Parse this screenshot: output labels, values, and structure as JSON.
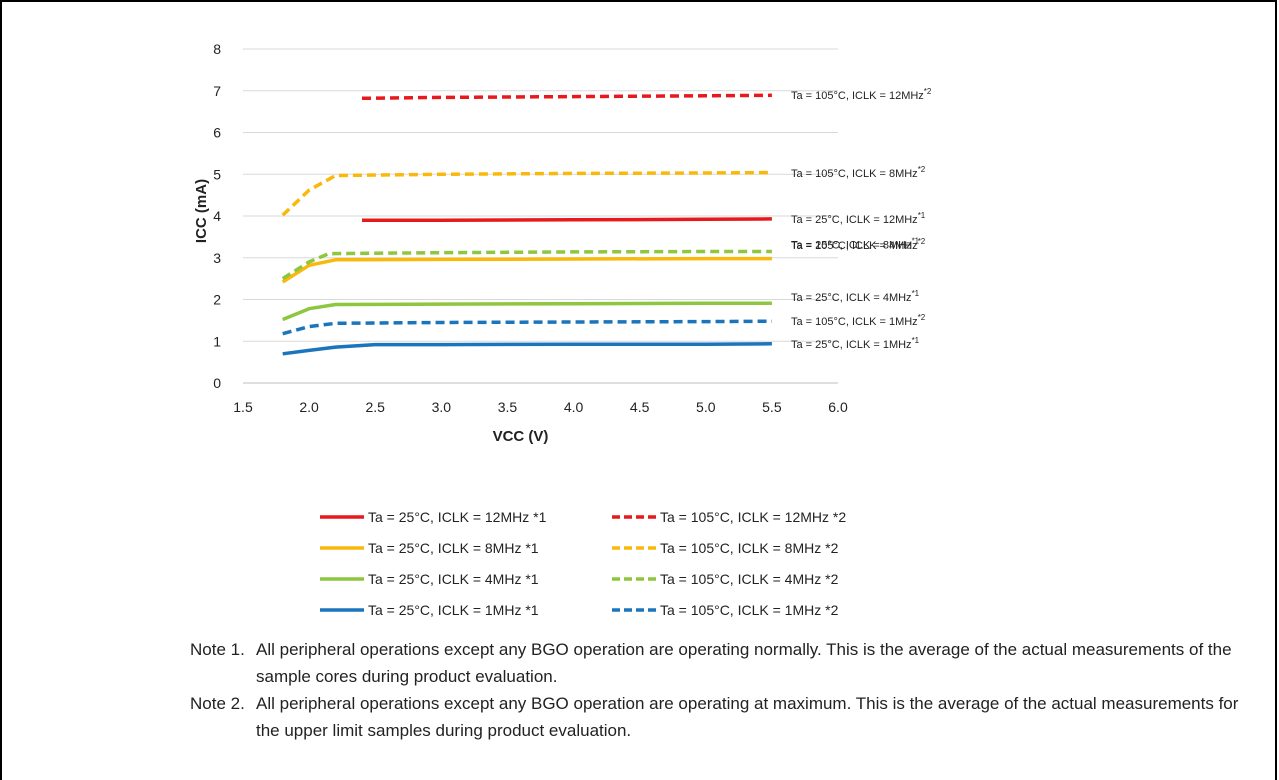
{
  "chart_data": {
    "type": "line",
    "title": "",
    "xlabel": "VCC (V)",
    "ylabel": "ICC (mA)",
    "xlim": [
      1.5,
      6.0
    ],
    "ylim": [
      0,
      8
    ],
    "xticks": [
      "1.5",
      "2.0",
      "2.5",
      "3.0",
      "3.5",
      "4.0",
      "4.5",
      "5.0",
      "5.5",
      "6.0"
    ],
    "yticks": [
      "0",
      "1",
      "2",
      "3",
      "4",
      "5",
      "6",
      "7",
      "8"
    ],
    "grid": "horizontal",
    "legend_position": "bottom",
    "series": [
      {
        "name": "Ta = 25°C, ICLK = 12MHz *1",
        "end_label": "Ta = 25°C, ICLK = 12MHz*1",
        "color": "#e8191c",
        "dash": false,
        "points": [
          [
            2.4,
            3.9
          ],
          [
            3.0,
            3.9
          ],
          [
            4.0,
            3.91
          ],
          [
            5.0,
            3.92
          ],
          [
            5.5,
            3.93
          ]
        ]
      },
      {
        "name": "Ta = 105°C, ICLK = 12MHz *2",
        "end_label": "Ta = 105°C, ICLK = 12MHz*2",
        "color": "#e8191c",
        "dash": true,
        "points": [
          [
            2.4,
            6.82
          ],
          [
            3.0,
            6.84
          ],
          [
            4.0,
            6.86
          ],
          [
            5.0,
            6.88
          ],
          [
            5.5,
            6.89
          ]
        ]
      },
      {
        "name": "Ta = 25°C, ICLK = 8MHz *1",
        "end_label": "Ta = 25°C, ICLK = 8MHz*1",
        "color": "#f9b90c",
        "dash": false,
        "points": [
          [
            1.8,
            2.42
          ],
          [
            2.0,
            2.82
          ],
          [
            2.2,
            2.95
          ],
          [
            3.0,
            2.96
          ],
          [
            4.0,
            2.97
          ],
          [
            5.0,
            2.98
          ],
          [
            5.5,
            2.98
          ]
        ]
      },
      {
        "name": "Ta = 105°C, ICLK = 8MHz *2",
        "end_label": "Ta = 105°C, ICLK = 8MHz*2",
        "color": "#f9b90c",
        "dash": true,
        "points": [
          [
            1.8,
            4.02
          ],
          [
            2.0,
            4.62
          ],
          [
            2.2,
            4.97
          ],
          [
            3.0,
            5.0
          ],
          [
            4.0,
            5.02
          ],
          [
            5.0,
            5.03
          ],
          [
            5.5,
            5.04
          ]
        ]
      },
      {
        "name": "Ta = 25°C, ICLK = 4MHz *1",
        "end_label": "Ta = 25°C, ICLK = 4MHz*1",
        "color": "#8dc63f",
        "dash": false,
        "points": [
          [
            1.8,
            1.52
          ],
          [
            2.0,
            1.78
          ],
          [
            2.2,
            1.88
          ],
          [
            3.0,
            1.89
          ],
          [
            4.0,
            1.9
          ],
          [
            5.0,
            1.91
          ],
          [
            5.5,
            1.91
          ]
        ]
      },
      {
        "name": "Ta = 105°C, ICLK = 4MHz *2",
        "end_label": "Ta = 105°C, ICLK = 4MHz*2",
        "color": "#8dc63f",
        "dash": true,
        "points": [
          [
            1.8,
            2.5
          ],
          [
            2.0,
            2.9
          ],
          [
            2.15,
            3.1
          ],
          [
            3.0,
            3.12
          ],
          [
            4.0,
            3.14
          ],
          [
            5.0,
            3.15
          ],
          [
            5.5,
            3.15
          ]
        ]
      },
      {
        "name": "Ta = 25°C, ICLK = 1MHz *1",
        "end_label": "Ta = 25°C, ICLK = 1MHz*1",
        "color": "#1b75bc",
        "dash": false,
        "points": [
          [
            1.8,
            0.7
          ],
          [
            2.0,
            0.78
          ],
          [
            2.2,
            0.86
          ],
          [
            2.5,
            0.92
          ],
          [
            3.0,
            0.92
          ],
          [
            4.0,
            0.93
          ],
          [
            5.0,
            0.93
          ],
          [
            5.5,
            0.94
          ]
        ]
      },
      {
        "name": "Ta = 105°C, ICLK = 1MHz *2",
        "end_label": "Ta = 105°C, ICLK = 1MHz*2",
        "color": "#1b75bc",
        "dash": true,
        "points": [
          [
            1.8,
            1.18
          ],
          [
            2.0,
            1.35
          ],
          [
            2.2,
            1.43
          ],
          [
            3.0,
            1.45
          ],
          [
            4.0,
            1.46
          ],
          [
            5.0,
            1.47
          ],
          [
            5.5,
            1.48
          ]
        ]
      }
    ],
    "end_label_y": [
      3.93,
      6.9,
      3.32,
      5.03,
      2.06,
      3.3,
      0.94,
      1.48
    ],
    "legend": {
      "rows": [
        [
          "Ta = 25°C, ICLK = 12MHz *1",
          "Ta = 105°C, ICLK = 12MHz *2"
        ],
        [
          "Ta = 25°C, ICLK = 8MHz *1",
          "Ta = 105°C, ICLK = 8MHz *2"
        ],
        [
          "Ta = 25°C, ICLK = 4MHz *1",
          "Ta = 105°C, ICLK = 4MHz *2"
        ],
        [
          "Ta = 25°C, ICLK = 1MHz *1",
          "Ta = 105°C, ICLK = 1MHz *2"
        ]
      ]
    }
  },
  "notes": [
    {
      "label": "Note 1.",
      "text": "All peripheral operations except any BGO operation are operating normally. This is the average of the actual measurements of the sample cores during product evaluation."
    },
    {
      "label": "Note 2.",
      "text": "All peripheral operations except any BGO operation are operating at maximum. This is the average of the actual measurements for the upper limit samples during product evaluation."
    }
  ]
}
